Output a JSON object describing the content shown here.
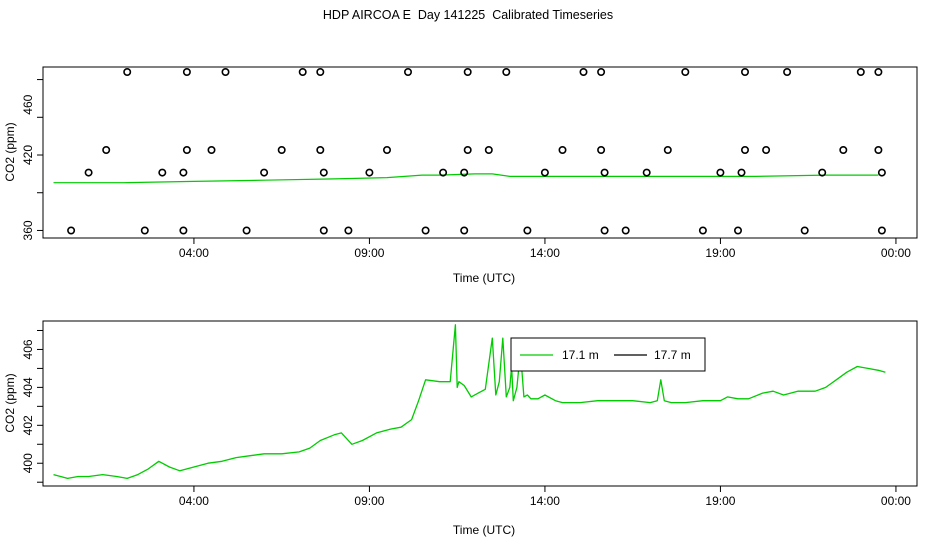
{
  "title": "HDP AIRCOA E  Day 141225  Calibrated Timeseries",
  "chart_data": [
    {
      "type": "scatter",
      "xlabel": "Time (UTC)",
      "ylabel": "CO2 (ppm)",
      "x_unit": "hours since 00:00 UTC",
      "xlim": [
        -0.3,
        24.6
      ],
      "ylim": [
        354,
        490
      ],
      "x_ticks": [
        {
          "value": 4,
          "label": "04:00"
        },
        {
          "value": 9,
          "label": "09:00"
        },
        {
          "value": 14,
          "label": "14:00"
        },
        {
          "value": 19,
          "label": "19:00"
        },
        {
          "value": 24,
          "label": "00:00"
        }
      ],
      "y_ticks": [
        {
          "value": 360,
          "label": "360"
        },
        {
          "value": 420,
          "label": "420"
        },
        {
          "value": 460,
          "label": "460"
        }
      ],
      "points": [
        {
          "x": 0.5,
          "y": 360
        },
        {
          "x": 1.0,
          "y": 406
        },
        {
          "x": 1.5,
          "y": 424
        },
        {
          "x": 2.1,
          "y": 486
        },
        {
          "x": 2.6,
          "y": 360
        },
        {
          "x": 3.1,
          "y": 406
        },
        {
          "x": 3.7,
          "y": 360
        },
        {
          "x": 3.7,
          "y": 406
        },
        {
          "x": 3.8,
          "y": 424
        },
        {
          "x": 3.8,
          "y": 486
        },
        {
          "x": 4.5,
          "y": 424
        },
        {
          "x": 4.9,
          "y": 486
        },
        {
          "x": 5.5,
          "y": 360
        },
        {
          "x": 6.0,
          "y": 406
        },
        {
          "x": 6.5,
          "y": 424
        },
        {
          "x": 7.1,
          "y": 486
        },
        {
          "x": 7.6,
          "y": 486
        },
        {
          "x": 7.6,
          "y": 424
        },
        {
          "x": 7.7,
          "y": 406
        },
        {
          "x": 7.7,
          "y": 360
        },
        {
          "x": 8.4,
          "y": 360
        },
        {
          "x": 9.0,
          "y": 406
        },
        {
          "x": 9.5,
          "y": 424
        },
        {
          "x": 10.1,
          "y": 486
        },
        {
          "x": 10.6,
          "y": 360
        },
        {
          "x": 11.1,
          "y": 406
        },
        {
          "x": 11.7,
          "y": 360
        },
        {
          "x": 11.7,
          "y": 406
        },
        {
          "x": 11.8,
          "y": 424
        },
        {
          "x": 11.8,
          "y": 486
        },
        {
          "x": 12.4,
          "y": 424
        },
        {
          "x": 12.9,
          "y": 486
        },
        {
          "x": 13.5,
          "y": 360
        },
        {
          "x": 14.0,
          "y": 406
        },
        {
          "x": 14.5,
          "y": 424
        },
        {
          "x": 15.1,
          "y": 486
        },
        {
          "x": 15.6,
          "y": 486
        },
        {
          "x": 15.6,
          "y": 424
        },
        {
          "x": 15.7,
          "y": 406
        },
        {
          "x": 15.7,
          "y": 360
        },
        {
          "x": 16.3,
          "y": 360
        },
        {
          "x": 16.9,
          "y": 406
        },
        {
          "x": 17.5,
          "y": 424
        },
        {
          "x": 18.0,
          "y": 486
        },
        {
          "x": 18.5,
          "y": 360
        },
        {
          "x": 19.0,
          "y": 406
        },
        {
          "x": 19.5,
          "y": 360
        },
        {
          "x": 19.6,
          "y": 406
        },
        {
          "x": 19.7,
          "y": 424
        },
        {
          "x": 19.7,
          "y": 486
        },
        {
          "x": 20.3,
          "y": 424
        },
        {
          "x": 20.9,
          "y": 486
        },
        {
          "x": 21.4,
          "y": 360
        },
        {
          "x": 21.9,
          "y": 406
        },
        {
          "x": 22.5,
          "y": 424
        },
        {
          "x": 23.0,
          "y": 486
        },
        {
          "x": 23.5,
          "y": 486
        },
        {
          "x": 23.5,
          "y": 424
        },
        {
          "x": 23.6,
          "y": 406
        },
        {
          "x": 23.6,
          "y": 360
        }
      ],
      "line": {
        "color": "#00cc00",
        "x": [
          0,
          2,
          4,
          6,
          8,
          9.5,
          10.5,
          11,
          12,
          12.5,
          13,
          14,
          16,
          18,
          20,
          22,
          23.5
        ],
        "y": [
          398,
          398,
          399,
          400,
          401,
          402,
          404,
          404,
          405,
          405,
          403,
          403,
          403,
          403,
          403,
          404,
          404
        ]
      }
    },
    {
      "type": "line",
      "xlabel": "Time (UTC)",
      "ylabel": "CO2 (ppm)",
      "x_unit": "hours since 00:00 UTC",
      "xlim": [
        -0.3,
        24.6
      ],
      "ylim": [
        398.8,
        407.5
      ],
      "x_ticks": [
        {
          "value": 4,
          "label": "04:00"
        },
        {
          "value": 9,
          "label": "09:00"
        },
        {
          "value": 14,
          "label": "14:00"
        },
        {
          "value": 19,
          "label": "19:00"
        },
        {
          "value": 24,
          "label": "00:00"
        }
      ],
      "y_ticks": [
        {
          "value": 400,
          "label": "400"
        },
        {
          "value": 402,
          "label": "402"
        },
        {
          "value": 404,
          "label": "404"
        },
        {
          "value": 406,
          "label": "406"
        }
      ],
      "legend": {
        "position": "top-center",
        "entries": [
          {
            "name": "17.1 m",
            "color": "#00cc00"
          },
          {
            "name": "17.7 m",
            "color": "#000000"
          }
        ]
      },
      "series": [
        {
          "name": "17.1 m",
          "color": "#00cc00",
          "x": [
            0.0,
            0.2,
            0.4,
            0.7,
            1.0,
            1.4,
            1.8,
            2.1,
            2.4,
            2.7,
            3.0,
            3.3,
            3.6,
            4.0,
            4.4,
            4.8,
            5.2,
            5.6,
            6.0,
            6.5,
            7.0,
            7.3,
            7.6,
            8.0,
            8.2,
            8.5,
            8.8,
            9.2,
            9.6,
            9.9,
            10.2,
            10.4,
            10.6,
            11.0,
            11.3,
            11.45,
            11.5,
            11.55,
            11.7,
            11.9,
            12.1,
            12.3,
            12.5,
            12.6,
            12.7,
            12.8,
            12.9,
            13.0,
            13.05,
            13.1,
            13.2,
            13.3,
            13.4,
            13.5,
            13.6,
            13.8,
            14.0,
            14.3,
            14.5,
            15.0,
            15.5,
            16.0,
            16.5,
            17.0,
            17.2,
            17.3,
            17.4,
            17.6,
            18.0,
            18.5,
            18.8,
            19.0,
            19.2,
            19.5,
            19.8,
            20.2,
            20.5,
            20.8,
            21.2,
            21.5,
            21.7,
            22.0,
            22.3,
            22.6,
            22.9,
            23.2,
            23.5,
            23.7
          ],
          "y": [
            399.4,
            399.3,
            399.2,
            399.3,
            399.3,
            399.4,
            399.3,
            399.2,
            399.4,
            399.7,
            400.1,
            399.8,
            399.6,
            399.8,
            400.0,
            400.1,
            400.3,
            400.4,
            400.5,
            400.5,
            400.6,
            400.8,
            401.2,
            401.5,
            401.6,
            401.0,
            401.2,
            401.6,
            401.8,
            401.9,
            402.3,
            403.3,
            404.4,
            404.3,
            404.3,
            407.3,
            404.0,
            404.3,
            404.1,
            403.5,
            403.7,
            403.9,
            406.6,
            403.6,
            404.3,
            406.6,
            403.5,
            404.0,
            405.1,
            403.3,
            404.0,
            405.9,
            403.5,
            403.6,
            403.4,
            403.4,
            403.6,
            403.3,
            403.2,
            403.2,
            403.3,
            403.3,
            403.3,
            403.2,
            403.3,
            404.4,
            403.3,
            403.2,
            403.2,
            403.3,
            403.3,
            403.3,
            403.5,
            403.4,
            403.4,
            403.7,
            403.8,
            403.6,
            403.8,
            403.8,
            403.8,
            404.0,
            404.4,
            404.8,
            405.1,
            405.0,
            404.9,
            404.8
          ]
        }
      ]
    }
  ]
}
